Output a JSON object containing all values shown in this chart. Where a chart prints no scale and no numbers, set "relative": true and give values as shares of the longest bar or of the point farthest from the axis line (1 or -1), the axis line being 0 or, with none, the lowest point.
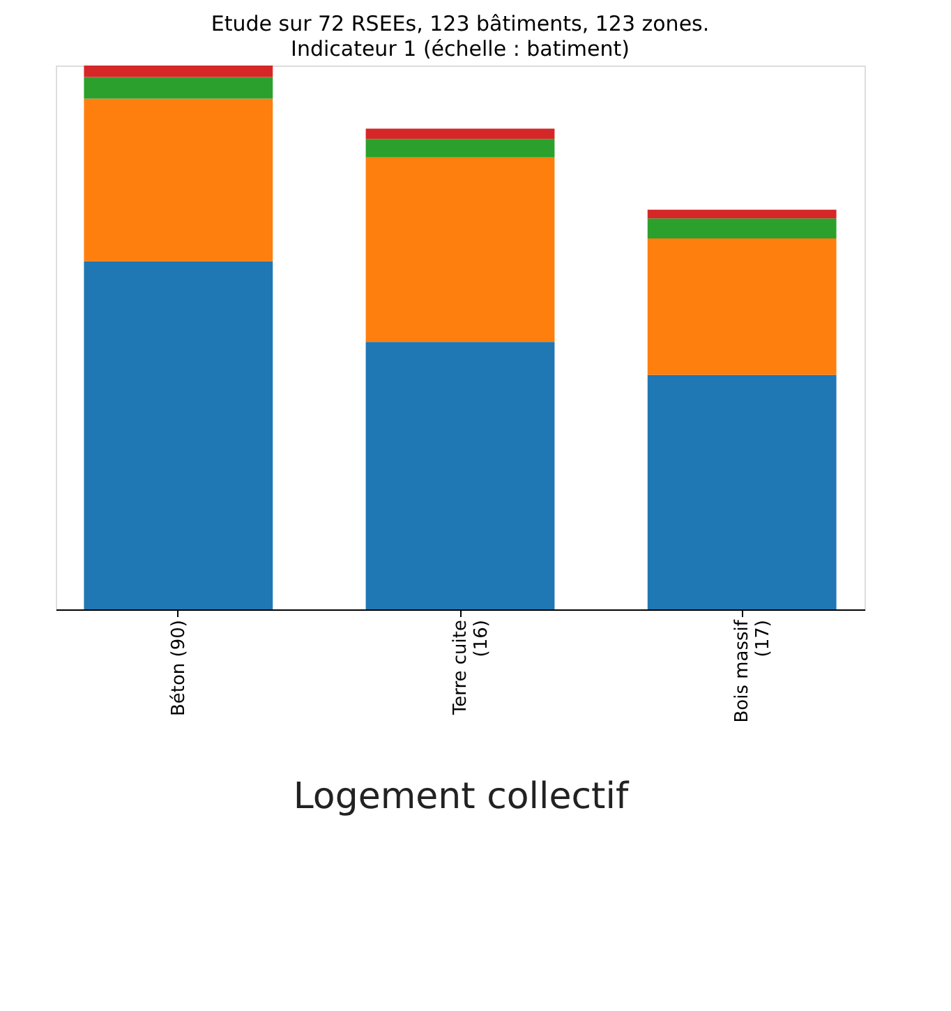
{
  "chart_data": {
    "type": "bar",
    "title": "Etude sur 72 RSEEs, 123 bâtiments, 123 zones.",
    "subtitle": "Indicateur 1 (échelle : batiment)",
    "xlabel": "Logement collectif",
    "categories": [
      "Béton (90)",
      "Terre cuite (16)",
      "Bois massif (17)"
    ],
    "stacked": true,
    "relative": true,
    "legend": false,
    "grid": false,
    "series": [
      {
        "color": "#1f77b4",
        "values": [
          0.64,
          0.492,
          0.431
        ]
      },
      {
        "color": "#ff7f0e",
        "values": [
          0.299,
          0.339,
          0.251
        ]
      },
      {
        "color": "#2ca02c",
        "values": [
          0.04,
          0.034,
          0.037
        ]
      },
      {
        "color": "#d62728",
        "values": [
          0.021,
          0.019,
          0.016
        ]
      }
    ]
  }
}
